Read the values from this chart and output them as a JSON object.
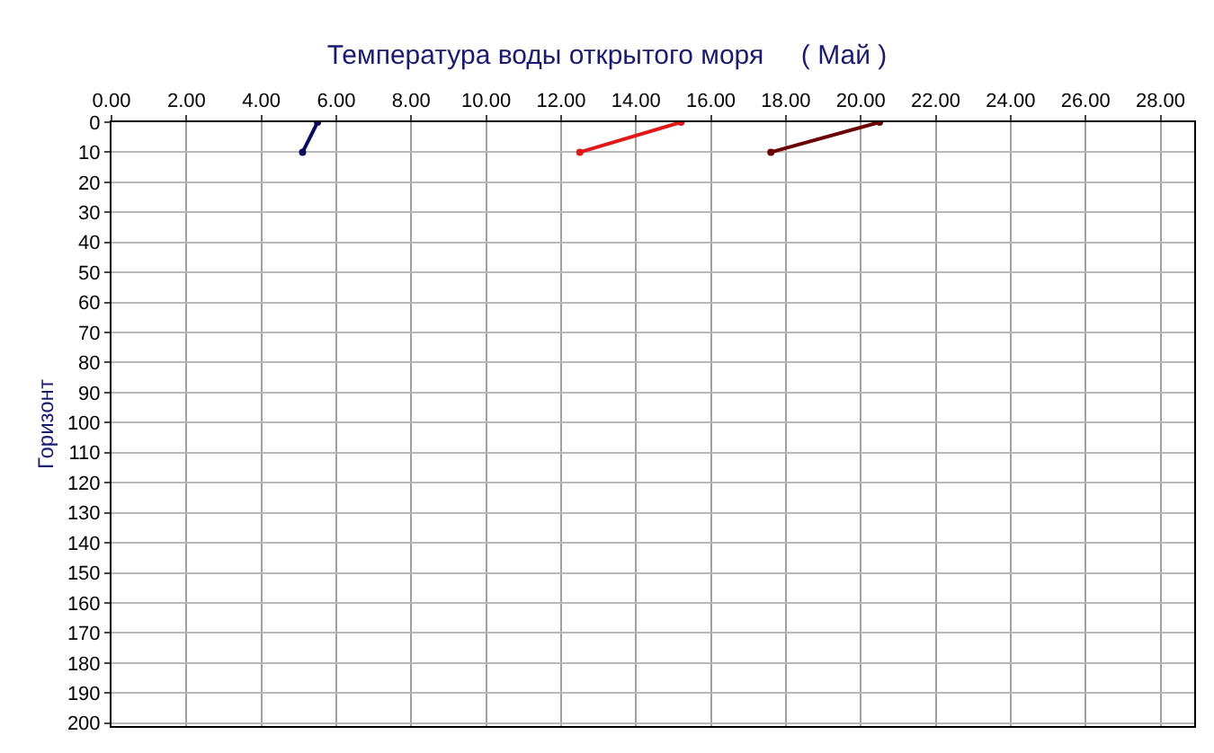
{
  "chart_data": {
    "type": "line",
    "title": "Температура воды открытого моря     ( Май )",
    "ylabel": "Горизонт",
    "xlim": [
      0,
      28.9
    ],
    "xticks": [
      {
        "value": 0,
        "label": "0.00"
      },
      {
        "value": 2,
        "label": "2.00"
      },
      {
        "value": 4,
        "label": "4.00"
      },
      {
        "value": 6,
        "label": "6.00"
      },
      {
        "value": 8,
        "label": "8.00"
      },
      {
        "value": 10,
        "label": "10.00"
      },
      {
        "value": 12,
        "label": "12.00"
      },
      {
        "value": 14,
        "label": "14.00"
      },
      {
        "value": 16,
        "label": "16.00"
      },
      {
        "value": 18,
        "label": "18.00"
      },
      {
        "value": 20,
        "label": "20.00"
      },
      {
        "value": 22,
        "label": "22.00"
      },
      {
        "value": 24,
        "label": "24.00"
      },
      {
        "value": 26,
        "label": "26.00"
      },
      {
        "value": 28,
        "label": "28.00"
      }
    ],
    "ylim": [
      201,
      0
    ],
    "yticks": [
      0,
      10,
      20,
      30,
      40,
      50,
      60,
      70,
      80,
      90,
      100,
      110,
      120,
      130,
      140,
      150,
      160,
      170,
      180,
      190,
      200
    ],
    "grid": true,
    "marker": "circle",
    "line_style": "solid",
    "series": [
      {
        "color": "#0a0a5a",
        "x": [
          5.1,
          5.5
        ],
        "values": [
          10,
          0
        ]
      },
      {
        "color": "#e01818",
        "x": [
          12.5,
          15.2
        ],
        "values": [
          10,
          0
        ]
      },
      {
        "color": "#6b0000",
        "x": [
          17.6,
          20.5
        ],
        "values": [
          10,
          0
        ]
      }
    ]
  }
}
